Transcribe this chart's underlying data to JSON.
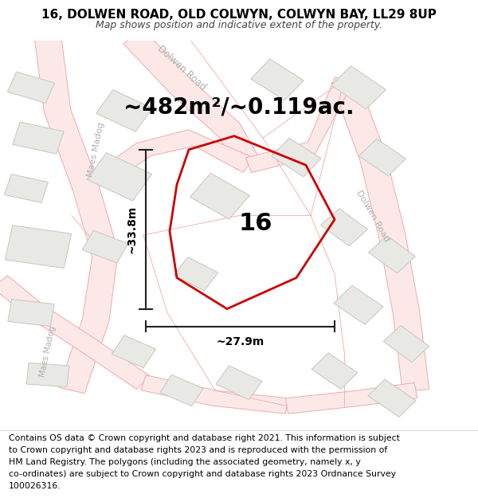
{
  "title": "16, DOLWEN ROAD, OLD COLWYN, COLWYN BAY, LL29 8UP",
  "subtitle": "Map shows position and indicative extent of the property.",
  "area_text": "~482m²/~0.119ac.",
  "number_label": "16",
  "dim_height": "~33.8m",
  "dim_width": "~27.9m",
  "footer_lines": [
    "Contains OS data © Crown copyright and database right 2021. This information is subject",
    "to Crown copyright and database rights 2023 and is reproduced with the permission of",
    "HM Land Registry. The polygons (including the associated geometry, namely x, y",
    "co-ordinates) are subject to Crown copyright and database rights 2023 Ordnance Survey",
    "100026316."
  ],
  "map_bg": "#ffffff",
  "road_line_color": "#f0aaaa",
  "road_fill_color": "#fde8e8",
  "building_color": "#e8e8e4",
  "building_outline": "#c8c8c0",
  "plot_color": "#cc0000",
  "dim_line_color": "#222222",
  "title_fontsize": 11,
  "subtitle_fontsize": 9,
  "area_fontsize": 20,
  "number_fontsize": 22,
  "footer_fontsize": 7.8,
  "road_label_color": "#b0b0b0",
  "road_label_size": 8.5
}
